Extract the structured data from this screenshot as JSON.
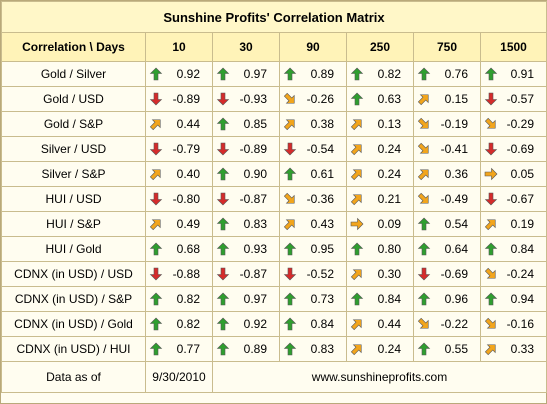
{
  "title": "Sunshine Profits' Correlation Matrix",
  "header": {
    "corner": "Correlation \\ Days",
    "columns": [
      "10",
      "30",
      "90",
      "250",
      "750",
      "1500"
    ]
  },
  "rows": [
    {
      "label": "Gold / Silver",
      "cells": [
        {
          "v": "0.92",
          "icon": "arrow-up-icon"
        },
        {
          "v": "0.97",
          "icon": "arrow-up-icon"
        },
        {
          "v": "0.89",
          "icon": "arrow-up-icon"
        },
        {
          "v": "0.82",
          "icon": "arrow-up-icon"
        },
        {
          "v": "0.76",
          "icon": "arrow-up-icon"
        },
        {
          "v": "0.91",
          "icon": "arrow-up-icon"
        }
      ]
    },
    {
      "label": "Gold / USD",
      "cells": [
        {
          "v": "-0.89",
          "icon": "arrow-down-icon"
        },
        {
          "v": "-0.93",
          "icon": "arrow-down-icon"
        },
        {
          "v": "-0.26",
          "icon": "arrow-down-right-icon"
        },
        {
          "v": "0.63",
          "icon": "arrow-up-icon"
        },
        {
          "v": "0.15",
          "icon": "arrow-up-right-icon"
        },
        {
          "v": "-0.57",
          "icon": "arrow-down-icon"
        }
      ]
    },
    {
      "label": "Gold / S&P",
      "cells": [
        {
          "v": "0.44",
          "icon": "arrow-up-right-icon"
        },
        {
          "v": "0.85",
          "icon": "arrow-up-icon"
        },
        {
          "v": "0.38",
          "icon": "arrow-up-right-icon"
        },
        {
          "v": "0.13",
          "icon": "arrow-up-right-icon"
        },
        {
          "v": "-0.19",
          "icon": "arrow-down-right-icon"
        },
        {
          "v": "-0.29",
          "icon": "arrow-down-right-icon"
        }
      ]
    },
    {
      "label": "Silver / USD",
      "cells": [
        {
          "v": "-0.79",
          "icon": "arrow-down-icon"
        },
        {
          "v": "-0.89",
          "icon": "arrow-down-icon"
        },
        {
          "v": "-0.54",
          "icon": "arrow-down-icon"
        },
        {
          "v": "0.24",
          "icon": "arrow-up-right-icon"
        },
        {
          "v": "-0.41",
          "icon": "arrow-down-right-icon"
        },
        {
          "v": "-0.69",
          "icon": "arrow-down-icon"
        }
      ]
    },
    {
      "label": "Silver / S&P",
      "cells": [
        {
          "v": "0.40",
          "icon": "arrow-up-right-icon"
        },
        {
          "v": "0.90",
          "icon": "arrow-up-icon"
        },
        {
          "v": "0.61",
          "icon": "arrow-up-icon"
        },
        {
          "v": "0.24",
          "icon": "arrow-up-right-icon"
        },
        {
          "v": "0.36",
          "icon": "arrow-up-right-icon"
        },
        {
          "v": "0.05",
          "icon": "arrow-right-icon"
        }
      ]
    },
    {
      "label": "HUI / USD",
      "cells": [
        {
          "v": "-0.80",
          "icon": "arrow-down-icon"
        },
        {
          "v": "-0.87",
          "icon": "arrow-down-icon"
        },
        {
          "v": "-0.36",
          "icon": "arrow-down-right-icon"
        },
        {
          "v": "0.21",
          "icon": "arrow-up-right-icon"
        },
        {
          "v": "-0.49",
          "icon": "arrow-down-right-icon"
        },
        {
          "v": "-0.67",
          "icon": "arrow-down-icon"
        }
      ]
    },
    {
      "label": "HUI / S&P",
      "cells": [
        {
          "v": "0.49",
          "icon": "arrow-up-right-icon"
        },
        {
          "v": "0.83",
          "icon": "arrow-up-icon"
        },
        {
          "v": "0.43",
          "icon": "arrow-up-right-icon"
        },
        {
          "v": "0.09",
          "icon": "arrow-right-icon"
        },
        {
          "v": "0.54",
          "icon": "arrow-up-icon"
        },
        {
          "v": "0.19",
          "icon": "arrow-up-right-icon"
        }
      ]
    },
    {
      "label": "HUI / Gold",
      "cells": [
        {
          "v": "0.68",
          "icon": "arrow-up-icon"
        },
        {
          "v": "0.93",
          "icon": "arrow-up-icon"
        },
        {
          "v": "0.95",
          "icon": "arrow-up-icon"
        },
        {
          "v": "0.80",
          "icon": "arrow-up-icon"
        },
        {
          "v": "0.64",
          "icon": "arrow-up-icon"
        },
        {
          "v": "0.84",
          "icon": "arrow-up-icon"
        }
      ]
    },
    {
      "label": "CDNX (in USD) / USD",
      "cells": [
        {
          "v": "-0.88",
          "icon": "arrow-down-icon"
        },
        {
          "v": "-0.87",
          "icon": "arrow-down-icon"
        },
        {
          "v": "-0.52",
          "icon": "arrow-down-icon"
        },
        {
          "v": "0.30",
          "icon": "arrow-up-right-icon"
        },
        {
          "v": "-0.69",
          "icon": "arrow-down-icon"
        },
        {
          "v": "-0.24",
          "icon": "arrow-down-right-icon"
        }
      ]
    },
    {
      "label": "CDNX (in USD) / S&P",
      "cells": [
        {
          "v": "0.82",
          "icon": "arrow-up-icon"
        },
        {
          "v": "0.97",
          "icon": "arrow-up-icon"
        },
        {
          "v": "0.73",
          "icon": "arrow-up-icon"
        },
        {
          "v": "0.84",
          "icon": "arrow-up-icon"
        },
        {
          "v": "0.96",
          "icon": "arrow-up-icon"
        },
        {
          "v": "0.94",
          "icon": "arrow-up-icon"
        }
      ]
    },
    {
      "label": "CDNX (in USD) / Gold",
      "cells": [
        {
          "v": "0.82",
          "icon": "arrow-up-icon"
        },
        {
          "v": "0.92",
          "icon": "arrow-up-icon"
        },
        {
          "v": "0.84",
          "icon": "arrow-up-icon"
        },
        {
          "v": "0.44",
          "icon": "arrow-up-right-icon"
        },
        {
          "v": "-0.22",
          "icon": "arrow-down-right-icon"
        },
        {
          "v": "-0.16",
          "icon": "arrow-down-right-icon"
        }
      ]
    },
    {
      "label": "CDNX (in USD) / HUI",
      "cells": [
        {
          "v": "0.77",
          "icon": "arrow-up-icon"
        },
        {
          "v": "0.89",
          "icon": "arrow-up-icon"
        },
        {
          "v": "0.83",
          "icon": "arrow-up-icon"
        },
        {
          "v": "0.24",
          "icon": "arrow-up-right-icon"
        },
        {
          "v": "0.55",
          "icon": "arrow-up-icon"
        },
        {
          "v": "0.33",
          "icon": "arrow-up-right-icon"
        }
      ]
    }
  ],
  "footer": {
    "data_as_of_label": "Data as of",
    "date": "9/30/2010",
    "website": "www.sunshineprofits.com"
  },
  "colors": {
    "up": "#2f9e2f",
    "down": "#d52b2b",
    "diagonal": "#f2a51c",
    "border": "#c9bc8e",
    "header_bg": "#fff3b8"
  }
}
